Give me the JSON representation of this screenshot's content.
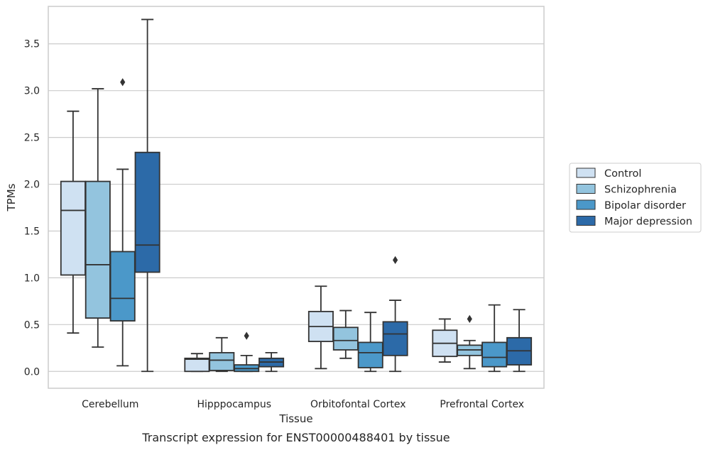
{
  "chart_data": {
    "type": "box",
    "title": "",
    "caption": "Transcript expression for ENST00000488401 by tissue",
    "xlabel": "Tissue",
    "ylabel": "TPMs",
    "ylim": [
      -0.18,
      3.9
    ],
    "yticks": [
      0.0,
      0.5,
      1.0,
      1.5,
      2.0,
      2.5,
      3.0,
      3.5
    ],
    "ytick_labels": [
      "0.0",
      "0.5",
      "1.0",
      "1.5",
      "2.0",
      "2.5",
      "3.0",
      "3.5"
    ],
    "grid": "horizontal",
    "legend_position": "right",
    "categories": [
      "Cerebellum",
      "Hipppocampus",
      "Orbitofontal Cortex",
      "Prefrontal Cortex"
    ],
    "series": [
      {
        "name": "Control",
        "color": "#cfe1f2",
        "boxes": [
          {
            "whislo": 0.41,
            "q1": 1.03,
            "med": 1.72,
            "q3": 2.03,
            "whishi": 2.78,
            "fliers": []
          },
          {
            "whislo": 0.0,
            "q1": 0.0,
            "med": 0.13,
            "q3": 0.14,
            "whishi": 0.19,
            "fliers": []
          },
          {
            "whislo": 0.03,
            "q1": 0.32,
            "med": 0.48,
            "q3": 0.64,
            "whishi": 0.91,
            "fliers": []
          },
          {
            "whislo": 0.1,
            "q1": 0.16,
            "med": 0.3,
            "q3": 0.44,
            "whishi": 0.56,
            "fliers": []
          }
        ]
      },
      {
        "name": "Schizophrenia",
        "color": "#93c4de",
        "boxes": [
          {
            "whislo": 0.26,
            "q1": 0.57,
            "med": 1.14,
            "q3": 2.03,
            "whishi": 3.02,
            "fliers": []
          },
          {
            "whislo": 0.0,
            "q1": 0.01,
            "med": 0.12,
            "q3": 0.2,
            "whishi": 0.36,
            "fliers": []
          },
          {
            "whislo": 0.14,
            "q1": 0.23,
            "med": 0.33,
            "q3": 0.47,
            "whishi": 0.65,
            "fliers": []
          },
          {
            "whislo": 0.03,
            "q1": 0.17,
            "med": 0.23,
            "q3": 0.28,
            "whishi": 0.33,
            "fliers": [
              0.56
            ]
          }
        ]
      },
      {
        "name": "Bipolar disorder",
        "color": "#4b98c9",
        "boxes": [
          {
            "whislo": 0.06,
            "q1": 0.54,
            "med": 0.78,
            "q3": 1.28,
            "whishi": 2.16,
            "fliers": [
              3.09
            ]
          },
          {
            "whislo": 0.0,
            "q1": 0.0,
            "med": 0.03,
            "q3": 0.07,
            "whishi": 0.17,
            "fliers": [
              0.38
            ]
          },
          {
            "whislo": 0.0,
            "q1": 0.04,
            "med": 0.2,
            "q3": 0.31,
            "whishi": 0.63,
            "fliers": []
          },
          {
            "whislo": 0.0,
            "q1": 0.05,
            "med": 0.15,
            "q3": 0.31,
            "whishi": 0.71,
            "fliers": []
          }
        ]
      },
      {
        "name": "Major depression",
        "color": "#2c6aa8",
        "boxes": [
          {
            "whislo": 0.0,
            "q1": 1.06,
            "med": 1.35,
            "q3": 2.34,
            "whishi": 3.76,
            "fliers": []
          },
          {
            "whislo": 0.0,
            "q1": 0.05,
            "med": 0.1,
            "q3": 0.14,
            "whishi": 0.2,
            "fliers": []
          },
          {
            "whislo": 0.0,
            "q1": 0.17,
            "med": 0.4,
            "q3": 0.53,
            "whishi": 0.76,
            "fliers": [
              1.19
            ]
          },
          {
            "whislo": 0.0,
            "q1": 0.07,
            "med": 0.22,
            "q3": 0.36,
            "whishi": 0.66,
            "fliers": []
          }
        ]
      }
    ]
  }
}
